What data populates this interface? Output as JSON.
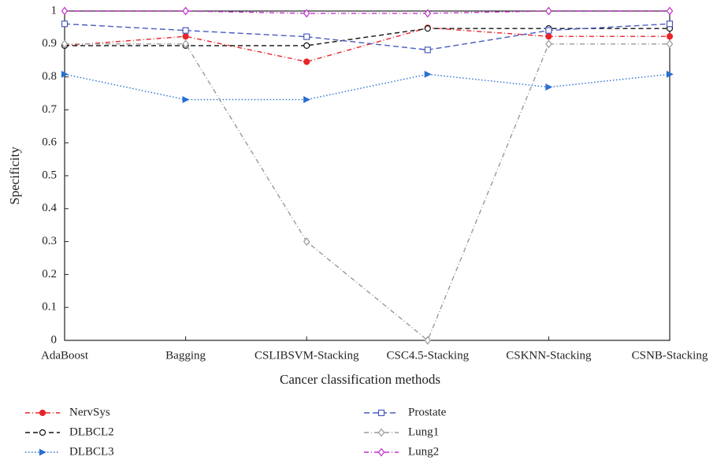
{
  "chart_data": {
    "type": "line",
    "x_label": "Cancer classification methods",
    "y_label": "Specificity",
    "categories": [
      "AdaBoost",
      "Bagging",
      "CSLIBSVM-Stacking",
      "CSC4.5-Stacking",
      "CSKNN-Stacking",
      "CSNB-Stacking"
    ],
    "ylim": [
      0,
      1
    ],
    "yticks": [
      0,
      0.1,
      0.2,
      0.3,
      0.4,
      0.5,
      0.6,
      0.7,
      0.8,
      0.9,
      1
    ],
    "series": [
      {
        "name": "NervSys",
        "color": "#e8252a",
        "dash": "6 3 1 3",
        "marker": "circle-filled",
        "values": [
          0.895,
          0.923,
          0.846,
          0.949,
          0.923,
          0.923
        ]
      },
      {
        "name": "DLBCL2",
        "color": "#111111",
        "dash": "6 4",
        "marker": "circle",
        "values": [
          0.895,
          0.895,
          0.895,
          0.947,
          0.947,
          0.947
        ]
      },
      {
        "name": "DLBCL3",
        "color": "#2a6fd0",
        "dash": "1.5 2.5",
        "marker": "triangle",
        "values": [
          0.808,
          0.731,
          0.731,
          0.808,
          0.769,
          0.808
        ]
      },
      {
        "name": "Prostate",
        "color": "#4a5cc0",
        "dash": "7 4",
        "marker": "square",
        "values": [
          0.961,
          0.941,
          0.922,
          0.882,
          0.941,
          0.961
        ]
      },
      {
        "name": "Lung1",
        "color": "#9a9a9a",
        "dash": "6 3 1 3",
        "marker": "diamond",
        "values": [
          0.9,
          0.9,
          0.3,
          0,
          0.9,
          0.9
        ]
      },
      {
        "name": "Lung2",
        "color": "#c030c8",
        "dash": "6 3 1 3",
        "marker": "diamond",
        "values": [
          1,
          1,
          0.993,
          0.993,
          1,
          1
        ]
      }
    ]
  }
}
